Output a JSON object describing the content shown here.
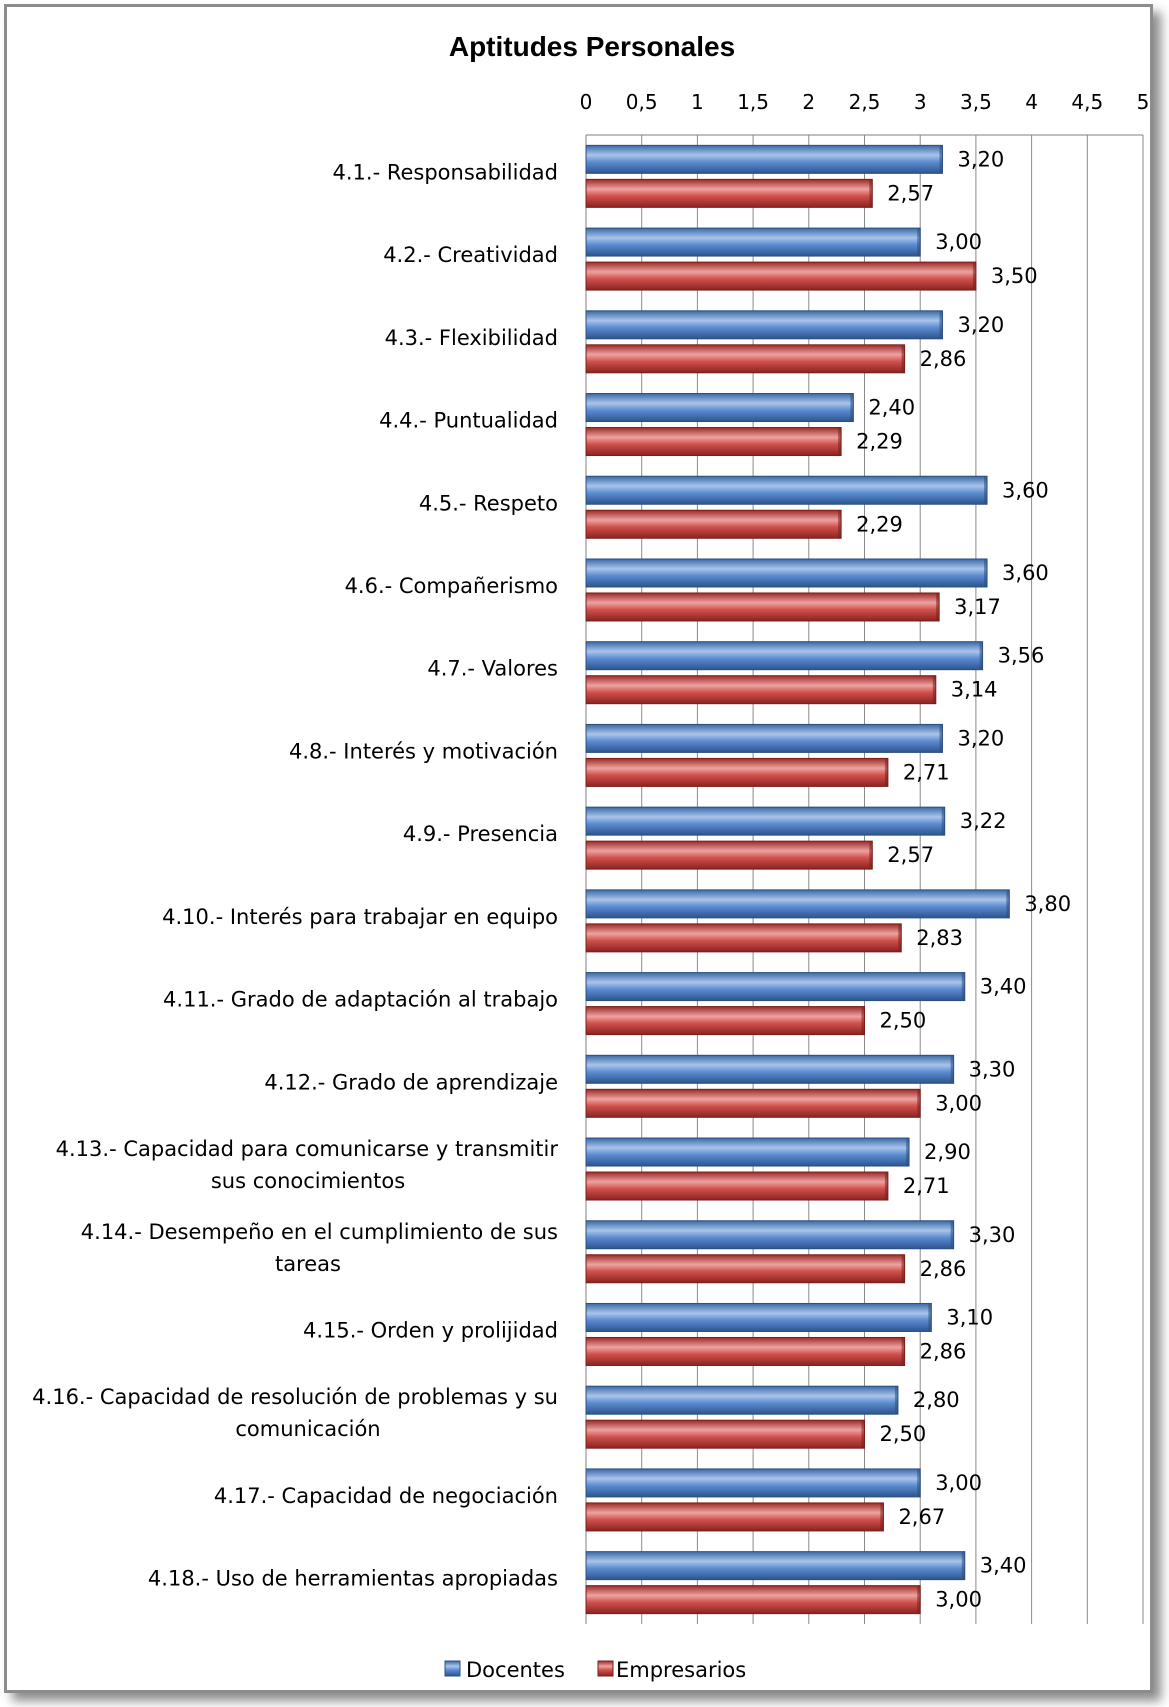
{
  "chart_data": {
    "type": "bar",
    "orientation": "horizontal",
    "title": "Aptitudes Personales",
    "xlim": [
      0,
      5
    ],
    "x_ticks": [
      "0",
      "0,5",
      "1",
      "1,5",
      "2",
      "2,5",
      "3",
      "3,5",
      "4",
      "4,5",
      "5"
    ],
    "x_axis_position": "top",
    "grid": "vertical",
    "legend_position": "bottom",
    "categories": [
      "4.1.- Responsabilidad",
      "4.2.- Creatividad",
      "4.3.- Flexibilidad",
      "4.4.- Puntualidad",
      "4.5.- Respeto",
      "4.6.- Compañerismo",
      "4.7.- Valores",
      "4.8.- Interés y motivación",
      "4.9.- Presencia",
      "4.10.- Interés para trabajar en equipo",
      "4.11.- Grado de adaptación al trabajo",
      "4.12.- Grado de aprendizaje",
      "4.13.- Capacidad para comunicarse y transmitir sus conocimientos",
      "4.14.- Desempeño en el cumplimiento de sus tareas",
      "4.15.- Orden y prolijidad",
      "4.16.- Capacidad de resolución de problemas y su comunicación",
      "4.17.- Capacidad de negociación",
      "4.18.- Uso de herramientas apropiadas"
    ],
    "category_lines": [
      [
        "4.1.- Responsabilidad"
      ],
      [
        "4.2.- Creatividad"
      ],
      [
        "4.3.- Flexibilidad"
      ],
      [
        "4.4.- Puntualidad"
      ],
      [
        "4.5.- Respeto"
      ],
      [
        "4.6.- Compañerismo"
      ],
      [
        "4.7.- Valores"
      ],
      [
        "4.8.- Interés y motivación"
      ],
      [
        "4.9.- Presencia"
      ],
      [
        "4.10.- Interés para trabajar en equipo"
      ],
      [
        "4.11.- Grado de adaptación al trabajo"
      ],
      [
        "4.12.- Grado de aprendizaje"
      ],
      [
        "4.13.- Capacidad para comunicarse y transmitir",
        "sus conocimientos"
      ],
      [
        "4.14.- Desempeño en el cumplimiento de sus",
        "tareas"
      ],
      [
        "4.15.- Orden y prolijidad"
      ],
      [
        "4.16.- Capacidad de resolución de problemas y su",
        "comunicación"
      ],
      [
        "4.17.- Capacidad de negociación"
      ],
      [
        "4.18.- Uso de herramientas apropiadas"
      ]
    ],
    "series": [
      {
        "name": "Docentes",
        "color": "#4f81bd",
        "values": [
          3.2,
          3.0,
          3.2,
          2.4,
          3.6,
          3.6,
          3.56,
          3.2,
          3.22,
          3.8,
          3.4,
          3.3,
          2.9,
          3.3,
          3.1,
          2.8,
          3.0,
          3.4
        ],
        "labels": [
          "3,20",
          "3,00",
          "3,20",
          "2,40",
          "3,60",
          "3,60",
          "3,56",
          "3,20",
          "3,22",
          "3,80",
          "3,40",
          "3,30",
          "2,90",
          "3,30",
          "3,10",
          "2,80",
          "3,00",
          "3,40"
        ]
      },
      {
        "name": "Empresarios",
        "color": "#c0504d",
        "values": [
          2.57,
          3.5,
          2.86,
          2.29,
          2.29,
          3.17,
          3.14,
          2.71,
          2.57,
          2.83,
          2.5,
          3.0,
          2.71,
          2.86,
          2.86,
          2.5,
          2.67,
          3.0
        ],
        "labels": [
          "2,57",
          "3,50",
          "2,86",
          "2,29",
          "2,29",
          "3,17",
          "3,14",
          "2,71",
          "2,57",
          "2,83",
          "2,50",
          "3,00",
          "2,71",
          "2,86",
          "2,86",
          "2,50",
          "2,67",
          "3,00"
        ]
      }
    ]
  }
}
